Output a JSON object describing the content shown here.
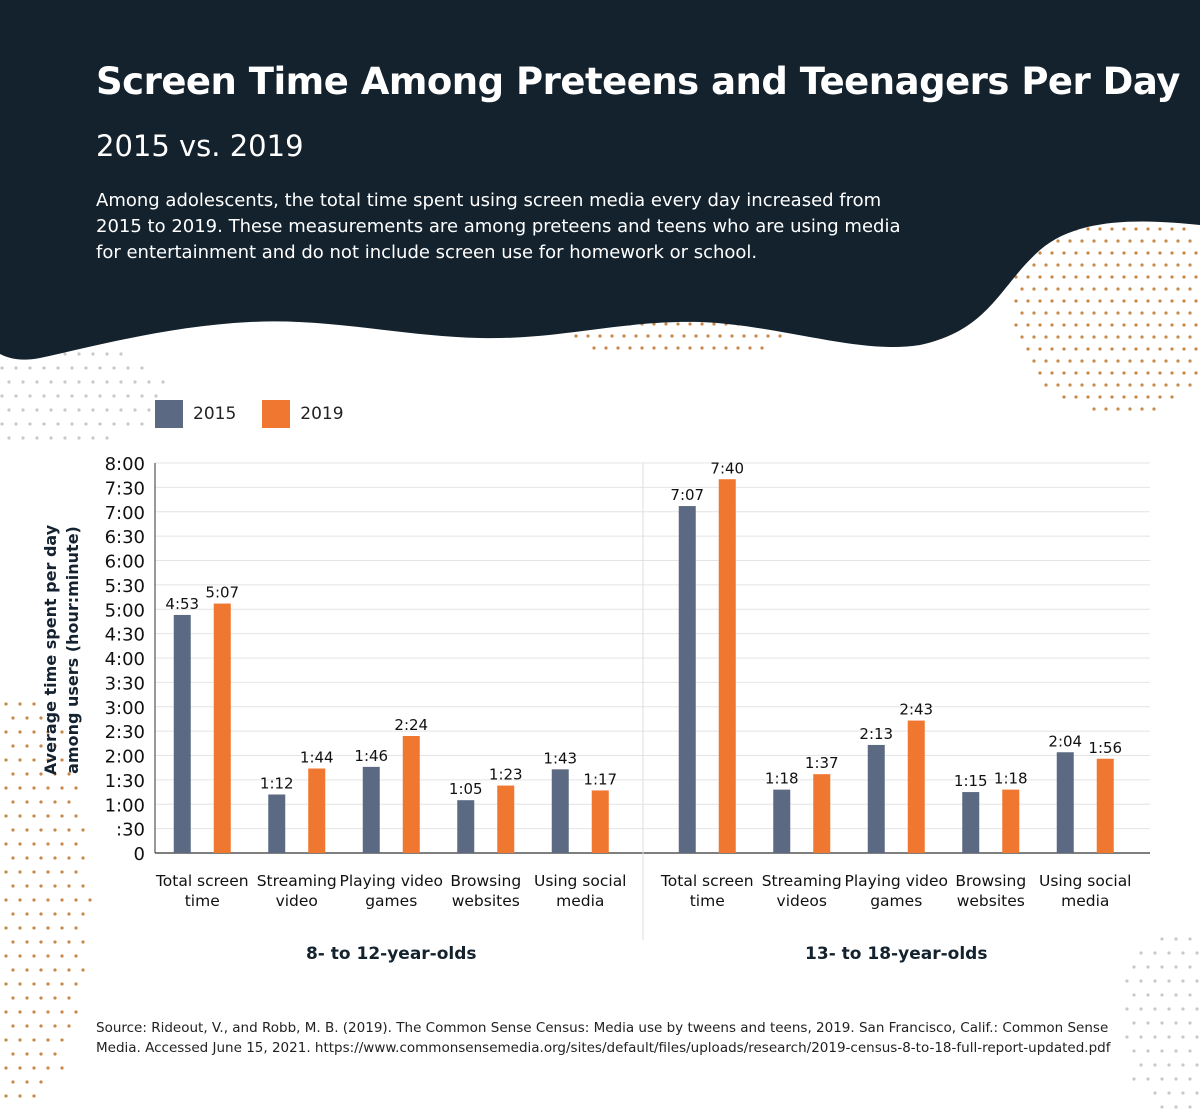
{
  "header": {
    "title": "Screen Time Among Preteens and Teenagers Per Day",
    "subtitle": "2015 vs. 2019",
    "description": "Among adolescents, the total time spent using screen media every day increased from 2015 to 2019. These measurements are among preteens and teens who are using media for entertainment and do not include screen use for homework or school."
  },
  "colors": {
    "header_bg": "#13222d",
    "series_2015": "#5b6a82",
    "series_2019": "#f0772f",
    "dots_orange": "#c8884a",
    "dots_gray": "#c9c9c9"
  },
  "legend": {
    "items": [
      {
        "label": "2015",
        "color": "#5b6a82"
      },
      {
        "label": "2019",
        "color": "#f0772f"
      }
    ]
  },
  "chart_data": {
    "type": "bar",
    "ylabel": "Average time spent per day among users (hour:minute)",
    "ylim_minutes": [
      0,
      480
    ],
    "y_ticks": [
      "0",
      ":30",
      "1:00",
      "1:30",
      "2:00",
      "2:30",
      "3:00",
      "3:30",
      "4:00",
      "4:30",
      "5:00",
      "5:30",
      "6:00",
      "6:30",
      "7:00",
      "7:30",
      "8:00"
    ],
    "grid": true,
    "legend_position": "top-left",
    "series_names": [
      "2015",
      "2019"
    ],
    "groups": [
      {
        "name": "8- to 12-year-olds",
        "categories": [
          {
            "label": [
              "Total screen",
              "time"
            ],
            "values": [
              293,
              307
            ],
            "labels": [
              "4:53",
              "5:07"
            ]
          },
          {
            "label": [
              "Streaming",
              "video"
            ],
            "values": [
              72,
              104
            ],
            "labels": [
              "1:12",
              "1:44"
            ]
          },
          {
            "label": [
              "Playing video",
              "games"
            ],
            "values": [
              106,
              144
            ],
            "labels": [
              "1:46",
              "2:24"
            ]
          },
          {
            "label": [
              "Browsing",
              "websites"
            ],
            "values": [
              65,
              83
            ],
            "labels": [
              "1:05",
              "1:23"
            ]
          },
          {
            "label": [
              "Using social",
              "media"
            ],
            "values": [
              103,
              77
            ],
            "labels": [
              "1:43",
              "1:17"
            ]
          }
        ]
      },
      {
        "name": "13- to 18-year-olds",
        "categories": [
          {
            "label": [
              "Total screen",
              "time"
            ],
            "values": [
              427,
              460
            ],
            "labels": [
              "7:07",
              "7:40"
            ]
          },
          {
            "label": [
              "Streaming",
              "videos"
            ],
            "values": [
              78,
              97
            ],
            "labels": [
              "1:18",
              "1:37"
            ]
          },
          {
            "label": [
              "Playing video",
              "games"
            ],
            "values": [
              133,
              163
            ],
            "labels": [
              "2:13",
              "2:43"
            ]
          },
          {
            "label": [
              "Browsing",
              "websites"
            ],
            "values": [
              75,
              78
            ],
            "labels": [
              "1:15",
              "1:18"
            ]
          },
          {
            "label": [
              "Using social",
              "media"
            ],
            "values": [
              124,
              116
            ],
            "labels": [
              "2:04",
              "1:56"
            ]
          }
        ]
      }
    ]
  },
  "source": "Source: Rideout, V., and Robb, M. B. (2019). The Common Sense Census: Media use by tweens and teens, 2019. San Francisco, Calif.: Common Sense Media. Accessed June 15, 2021. https://www.commonsensemedia.org/sites/default/files/uploads/research/2019-census-8-to-18-full-report-updated.pdf"
}
